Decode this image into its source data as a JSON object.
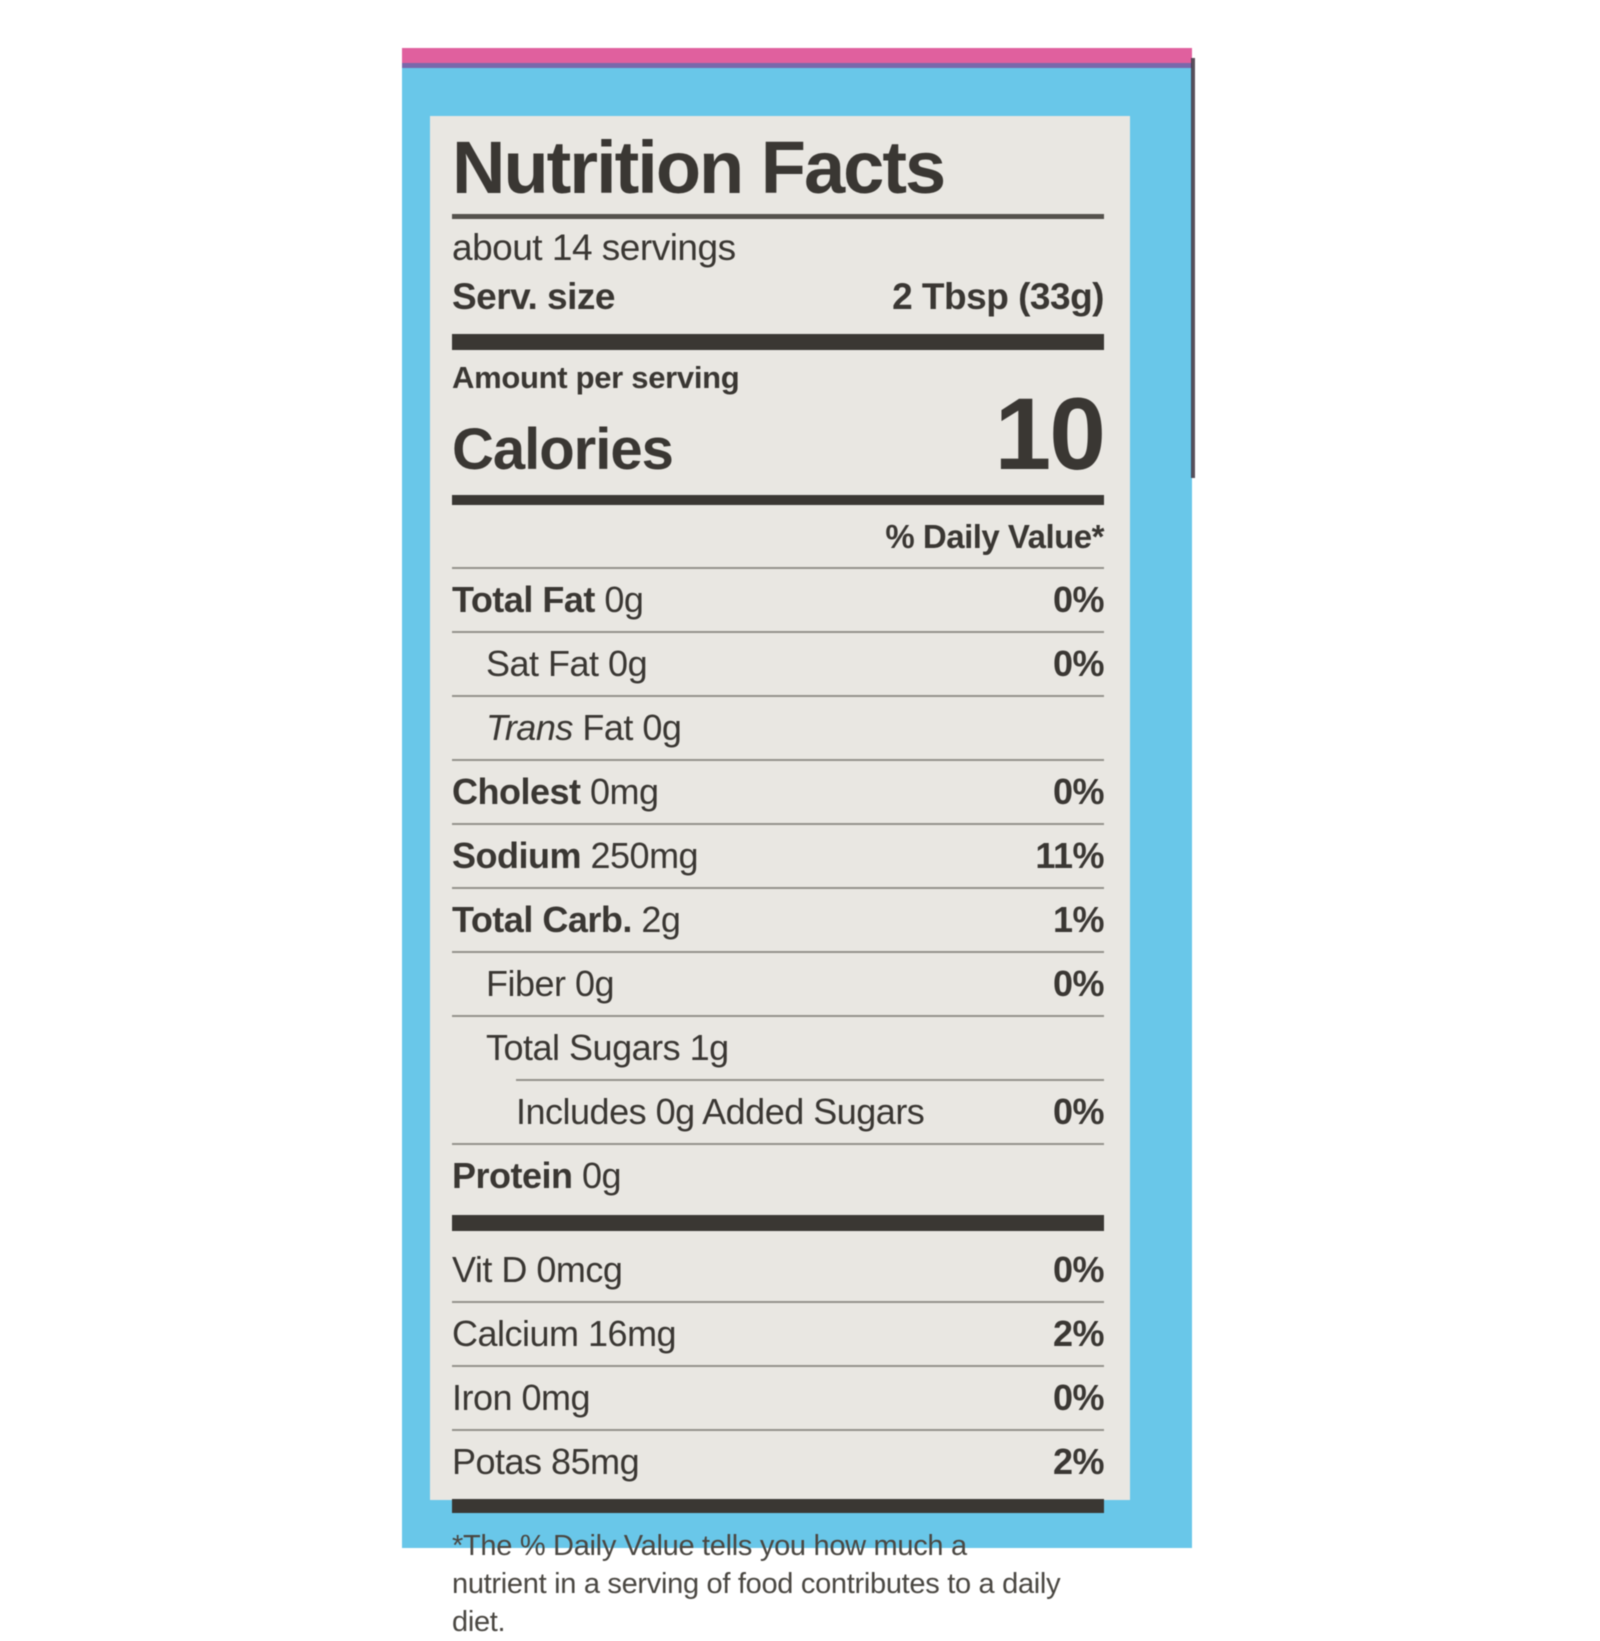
{
  "colors": {
    "pink": "#e0609e",
    "purple": "#7a68ab",
    "blue": "#69c7e9",
    "label": "#e9e7e2",
    "ink": "#3a3733",
    "hairline": "#94938d"
  },
  "label": {
    "title": "Nutrition Facts",
    "servings": "about 14 servings",
    "serving_size_label": "Serv. size",
    "serving_size_value": "2 Tbsp (33g)",
    "amount_per_serving": "Amount per serving",
    "calories_label": "Calories",
    "calories_value": "10",
    "daily_value_header": "% Daily Value*",
    "rows": [
      {
        "bold": "Total Fat",
        "text": " 0g",
        "dv": "0%"
      },
      {
        "text": "Sat Fat 0g",
        "dv": "0%"
      },
      {
        "italic": "Trans",
        "text": " Fat 0g",
        "dv": ""
      },
      {
        "bold": "Cholest",
        "text": " 0mg",
        "dv": "0%"
      },
      {
        "bold": "Sodium",
        "text": " 250mg",
        "dv": "11%"
      },
      {
        "bold": "Total Carb.",
        "text": " 2g",
        "dv": "1%"
      },
      {
        "text": "Fiber 0g",
        "dv": "0%"
      },
      {
        "text": "Total Sugars 1g",
        "dv": ""
      },
      {
        "text": "Includes 0g Added Sugars",
        "dv": "0%"
      },
      {
        "bold": "Protein",
        "text": " 0g",
        "dv": ""
      }
    ],
    "vitamins": [
      {
        "text": "Vit D 0mcg",
        "dv": "0%"
      },
      {
        "text": "Calcium 16mg",
        "dv": "2%"
      },
      {
        "text": "Iron 0mg",
        "dv": "0%"
      },
      {
        "text": "Potas 85mg",
        "dv": "2%"
      }
    ],
    "footnote": "*The % Daily Value tells you how much a nutrient in a serving of food contributes to a daily diet."
  }
}
